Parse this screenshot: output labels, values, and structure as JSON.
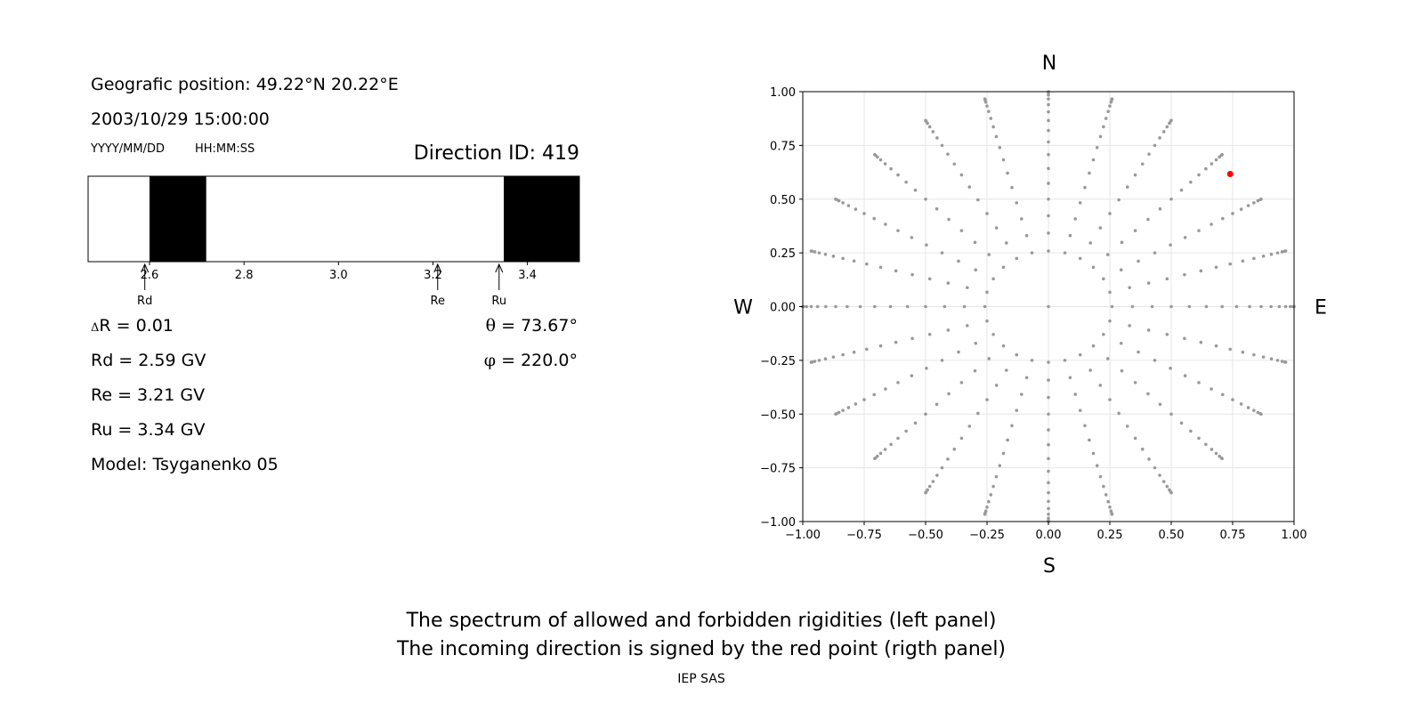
{
  "left_panel": {
    "geo_position": "Geografic position: 49.22°N 20.22°E",
    "datetime": "2003/10/29 15:00:00",
    "date_format": "YYYY/MM/DD",
    "time_format": "HH:MM:SS",
    "direction_id": "Direction ID: 419",
    "delta_r_symbol": "Δ",
    "delta_r": "R = 0.01",
    "theta_symbol": "θ",
    "theta": " = 73.67°",
    "phi_symbol": "φ",
    "phi": " = 220.0°",
    "rd": "Rd = 2.59 GV",
    "re": "Re = 3.21 GV",
    "ru": "Ru = 3.34 GV",
    "model": "Model: Tsyganenko 05"
  },
  "footer": {
    "line1": "The spectrum of allowed and forbidden rigidities (left panel)",
    "line2": "The incoming direction is signed by the red point (rigth panel)",
    "credit": "IEP SAS"
  },
  "chart_data": [
    {
      "type": "bar",
      "title": "",
      "xlabel": "",
      "ylabel": "",
      "xlim": [
        2.47,
        3.51
      ],
      "xticks": [
        2.6,
        2.8,
        3.0,
        3.2,
        3.4
      ],
      "forbidden_bands": [
        [
          2.6,
          2.72
        ],
        [
          3.35,
          3.51
        ]
      ],
      "markers": [
        {
          "label": "Rd",
          "value": 2.59
        },
        {
          "label": "Re",
          "value": 3.21
        },
        {
          "label": "Ru",
          "value": 3.34
        }
      ],
      "colors": {
        "forbidden": "#000000",
        "allowed": "#ffffff"
      }
    },
    {
      "type": "scatter",
      "title": "",
      "xlim": [
        -1.0,
        1.0
      ],
      "ylim": [
        -1.0,
        1.0
      ],
      "xticks": [
        -1.0,
        -0.75,
        -0.5,
        -0.25,
        0.0,
        0.25,
        0.5,
        0.75,
        1.0
      ],
      "yticks": [
        -1.0,
        -0.75,
        -0.5,
        -0.25,
        0.0,
        0.25,
        0.5,
        0.75,
        1.0
      ],
      "tick_labels": [
        "−1.00",
        "−0.75",
        "−0.50",
        "−0.25",
        "0.00",
        "0.25",
        "0.50",
        "0.75",
        "1.00"
      ],
      "grid": true,
      "compass": {
        "north": "N",
        "south": "S",
        "west": "W",
        "east": "E"
      },
      "grid_pattern": {
        "azimuth_step_deg": 15,
        "theta_step_deg": 5,
        "theta_min_deg": 15,
        "theta_max_deg": 90,
        "projection": "sin(theta)"
      },
      "highlight_point": {
        "x": 0.74,
        "y": 0.617,
        "color": "#ff0000"
      },
      "point_color": "#999999"
    }
  ]
}
